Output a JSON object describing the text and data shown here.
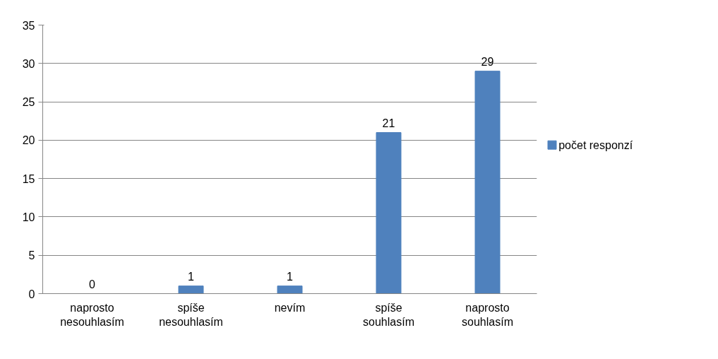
{
  "chart_data": {
    "type": "bar",
    "categories": [
      "naprosto\nnesouhlasím",
      "spíše\nnesouhlasím",
      "nevím",
      "spíše\nsouhlasím",
      "naprosto\nsouhlasím"
    ],
    "series": [
      {
        "name": "počet responzí",
        "color": "#4f81bd",
        "values": [
          0,
          1,
          1,
          21,
          29
        ]
      }
    ],
    "ylim": [
      0,
      35
    ],
    "yticks": [
      0,
      5,
      10,
      15,
      20,
      25,
      30,
      35
    ],
    "grid": "y",
    "legend": "right",
    "data_labels": true
  }
}
